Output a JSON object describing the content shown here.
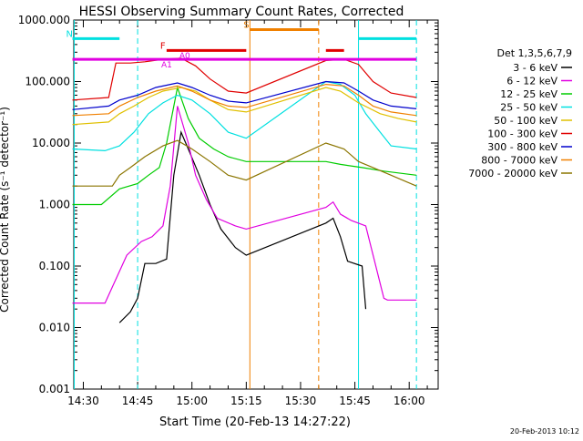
{
  "chart_data": {
    "type": "line",
    "title": "HESSI Observing Summary Count Rates, Corrected",
    "xlabel": "Start Time (20-Feb-13 14:27:22)",
    "ylabel": "Corrected Count Rate (s⁻¹ detector⁻¹)",
    "yscale": "log",
    "ylim": [
      0.001,
      1000
    ],
    "xlim": [
      "14:27:22",
      "16:08:00"
    ],
    "x_ticks": [
      "14:30",
      "14:45",
      "15:00",
      "15:15",
      "15:30",
      "15:45",
      "16:00"
    ],
    "y_ticks": [
      "0.001",
      "0.010",
      "0.100",
      "1.000",
      "10.000",
      "100.000",
      "1000.000"
    ],
    "grid": false,
    "timestamp": "20-Feb-2013 10:12",
    "legend": {
      "title": "Det 1,3,5,6,7,9",
      "placement": "right",
      "entries": [
        {
          "label": "3 - 6 keV",
          "color": "#000000"
        },
        {
          "label": "6 - 12 keV",
          "color": "#e000e0"
        },
        {
          "label": "12 - 25 keV",
          "color": "#00cc00"
        },
        {
          "label": "25 - 50 keV",
          "color": "#00e0e0"
        },
        {
          "label": "50 - 100 keV",
          "color": "#e0c000"
        },
        {
          "label": "100 - 300 keV",
          "color": "#e00000"
        },
        {
          "label": "300 - 800 keV",
          "color": "#0000cc"
        },
        {
          "label": "800 - 7000 keV",
          "color": "#f08000"
        },
        {
          "label": "7000 - 20000 keV",
          "color": "#8b7500"
        }
      ]
    },
    "series": [
      {
        "name": "3 - 6 keV",
        "color": "#000000",
        "points": [
          [
            "14:40",
            0.012
          ],
          [
            "14:43",
            0.018
          ],
          [
            "14:45",
            0.03
          ],
          [
            "14:47",
            0.11
          ],
          [
            "14:50",
            0.11
          ],
          [
            "14:53",
            0.13
          ],
          [
            "14:55",
            3
          ],
          [
            "14:57",
            15
          ],
          [
            "14:59",
            8
          ],
          [
            "15:02",
            3
          ],
          [
            "15:05",
            1
          ],
          [
            "15:08",
            0.4
          ],
          [
            "15:12",
            0.2
          ],
          [
            "15:15",
            0.15
          ],
          [
            "15:37",
            0.5
          ],
          [
            "15:39",
            0.6
          ],
          [
            "15:41",
            0.3
          ],
          [
            "15:43",
            0.12
          ],
          [
            "15:47",
            0.1
          ],
          [
            "15:48",
            0.02
          ]
        ]
      },
      {
        "name": "6 - 12 keV",
        "color": "#e000e0",
        "points": [
          [
            "14:27",
            0.025
          ],
          [
            "14:36",
            0.025
          ],
          [
            "14:42",
            0.15
          ],
          [
            "14:46",
            0.25
          ],
          [
            "14:49",
            0.3
          ],
          [
            "14:52",
            0.45
          ],
          [
            "14:54",
            2
          ],
          [
            "14:56",
            40
          ],
          [
            "14:59",
            10
          ],
          [
            "15:01",
            3
          ],
          [
            "15:04",
            1.2
          ],
          [
            "15:07",
            0.6
          ],
          [
            "15:12",
            0.45
          ],
          [
            "15:15",
            0.4
          ],
          [
            "15:37",
            0.9
          ],
          [
            "15:39",
            1.1
          ],
          [
            "15:41",
            0.7
          ],
          [
            "15:44",
            0.55
          ],
          [
            "15:48",
            0.45
          ],
          [
            "15:53",
            0.03
          ],
          [
            "15:54",
            0.028
          ],
          [
            "16:02",
            0.028
          ]
        ]
      },
      {
        "name": "12 - 25 keV",
        "color": "#00cc00",
        "points": [
          [
            "14:27",
            1
          ],
          [
            "14:35",
            1
          ],
          [
            "14:40",
            1.8
          ],
          [
            "14:45",
            2.2
          ],
          [
            "14:48",
            3
          ],
          [
            "14:51",
            4
          ],
          [
            "14:53",
            10
          ],
          [
            "14:56",
            80
          ],
          [
            "14:59",
            25
          ],
          [
            "15:02",
            12
          ],
          [
            "15:06",
            8
          ],
          [
            "15:10",
            6
          ],
          [
            "15:15",
            5
          ],
          [
            "15:37",
            5
          ],
          [
            "15:41",
            4.5
          ],
          [
            "15:47",
            4
          ],
          [
            "15:53",
            3.5
          ],
          [
            "16:02",
            3
          ]
        ]
      },
      {
        "name": "25 - 50 keV",
        "color": "#00e0e0",
        "points": [
          [
            "14:27",
            8
          ],
          [
            "14:36",
            7.5
          ],
          [
            "14:40",
            9
          ],
          [
            "14:44",
            15
          ],
          [
            "14:48",
            30
          ],
          [
            "14:52",
            45
          ],
          [
            "14:56",
            60
          ],
          [
            "15:00",
            50
          ],
          [
            "15:05",
            30
          ],
          [
            "15:10",
            15
          ],
          [
            "15:15",
            12
          ],
          [
            "15:37",
            100
          ],
          [
            "15:41",
            90
          ],
          [
            "15:45",
            60
          ],
          [
            "15:48",
            30
          ],
          [
            "15:52",
            15
          ],
          [
            "15:55",
            9
          ],
          [
            "16:02",
            8
          ]
        ]
      },
      {
        "name": "50 - 100 keV",
        "color": "#e0c000",
        "points": [
          [
            "14:27",
            20
          ],
          [
            "14:37",
            22
          ],
          [
            "14:40",
            30
          ],
          [
            "14:44",
            40
          ],
          [
            "14:48",
            55
          ],
          [
            "14:52",
            70
          ],
          [
            "14:57",
            80
          ],
          [
            "15:01",
            70
          ],
          [
            "15:05",
            50
          ],
          [
            "15:10",
            35
          ],
          [
            "15:15",
            32
          ],
          [
            "15:37",
            80
          ],
          [
            "15:41",
            70
          ],
          [
            "15:46",
            45
          ],
          [
            "15:52",
            30
          ],
          [
            "15:57",
            25
          ],
          [
            "16:02",
            22
          ]
        ]
      },
      {
        "name": "100 - 300 keV",
        "color": "#e00000",
        "points": [
          [
            "14:27",
            50
          ],
          [
            "14:37",
            55
          ],
          [
            "14:39",
            200
          ],
          [
            "14:43",
            200
          ],
          [
            "14:47",
            210
          ],
          [
            "14:52",
            230
          ],
          [
            "14:57",
            240
          ],
          [
            "15:01",
            180
          ],
          [
            "15:05",
            110
          ],
          [
            "15:10",
            70
          ],
          [
            "15:15",
            65
          ],
          [
            "15:37",
            220
          ],
          [
            "15:42",
            230
          ],
          [
            "15:46",
            190
          ],
          [
            "15:50",
            100
          ],
          [
            "15:55",
            65
          ],
          [
            "16:02",
            55
          ]
        ]
      },
      {
        "name": "300 - 800 keV",
        "color": "#0000cc",
        "points": [
          [
            "14:27",
            35
          ],
          [
            "14:37",
            40
          ],
          [
            "14:40",
            50
          ],
          [
            "14:45",
            60
          ],
          [
            "14:50",
            80
          ],
          [
            "14:56",
            95
          ],
          [
            "15:00",
            80
          ],
          [
            "15:05",
            60
          ],
          [
            "15:10",
            48
          ],
          [
            "15:15",
            45
          ],
          [
            "15:37",
            100
          ],
          [
            "15:42",
            95
          ],
          [
            "15:46",
            70
          ],
          [
            "15:50",
            50
          ],
          [
            "15:55",
            40
          ],
          [
            "16:02",
            36
          ]
        ]
      },
      {
        "name": "800 - 7000 keV",
        "color": "#f08000",
        "points": [
          [
            "14:27",
            28
          ],
          [
            "14:37",
            30
          ],
          [
            "14:40",
            40
          ],
          [
            "14:45",
            55
          ],
          [
            "14:50",
            70
          ],
          [
            "14:56",
            85
          ],
          [
            "15:00",
            70
          ],
          [
            "15:05",
            50
          ],
          [
            "15:10",
            40
          ],
          [
            "15:15",
            38
          ],
          [
            "15:37",
            90
          ],
          [
            "15:42",
            85
          ],
          [
            "15:46",
            60
          ],
          [
            "15:50",
            40
          ],
          [
            "15:55",
            32
          ],
          [
            "16:02",
            28
          ]
        ]
      },
      {
        "name": "7000 - 20000 keV",
        "color": "#8b7500",
        "points": [
          [
            "14:27",
            2
          ],
          [
            "14:38",
            2
          ],
          [
            "14:40",
            3
          ],
          [
            "14:43",
            4
          ],
          [
            "14:47",
            6
          ],
          [
            "14:52",
            9
          ],
          [
            "14:56",
            11
          ],
          [
            "15:00",
            8
          ],
          [
            "15:05",
            5
          ],
          [
            "15:10",
            3
          ],
          [
            "15:15",
            2.5
          ],
          [
            "15:37",
            10
          ],
          [
            "15:42",
            8
          ],
          [
            "15:46",
            5
          ],
          [
            "15:50",
            4
          ],
          [
            "15:55",
            3
          ],
          [
            "16:02",
            2
          ]
        ]
      }
    ],
    "state_bars": [
      {
        "label": "N",
        "color": "#00e0e0",
        "y": 500,
        "segments": [
          [
            "14:27",
            "14:40"
          ],
          [
            "15:46",
            "16:02"
          ]
        ]
      },
      {
        "label": "F",
        "color": "#e00000",
        "y": 320,
        "segments": [
          [
            "14:53",
            "15:15"
          ],
          [
            "15:37",
            "15:42"
          ]
        ]
      },
      {
        "label": "S",
        "color": "#f08000",
        "y": 700,
        "segments": [
          [
            "15:16",
            "15:35"
          ]
        ]
      },
      {
        "label": "",
        "color": "#e000e0",
        "y": 230,
        "segments": [
          [
            "14:27",
            "16:02"
          ]
        ]
      }
    ],
    "annotations": [
      {
        "text": "A1",
        "x": "14:53",
        "y": 170,
        "color": "#e000e0"
      },
      {
        "text": "A0",
        "x": "14:58",
        "y": 240,
        "color": "#e000e0"
      }
    ],
    "vlines": [
      {
        "x": "14:27:30",
        "color": "#00e0e0",
        "style": "solid"
      },
      {
        "x": "14:45",
        "color": "#00e0e0",
        "style": "dashed"
      },
      {
        "x": "15:16",
        "color": "#f08000",
        "style": "solid"
      },
      {
        "x": "15:35",
        "color": "#f08000",
        "style": "dashed"
      },
      {
        "x": "15:46",
        "color": "#00e0e0",
        "style": "solid"
      },
      {
        "x": "16:02",
        "color": "#00e0e0",
        "style": "dashed"
      }
    ]
  }
}
